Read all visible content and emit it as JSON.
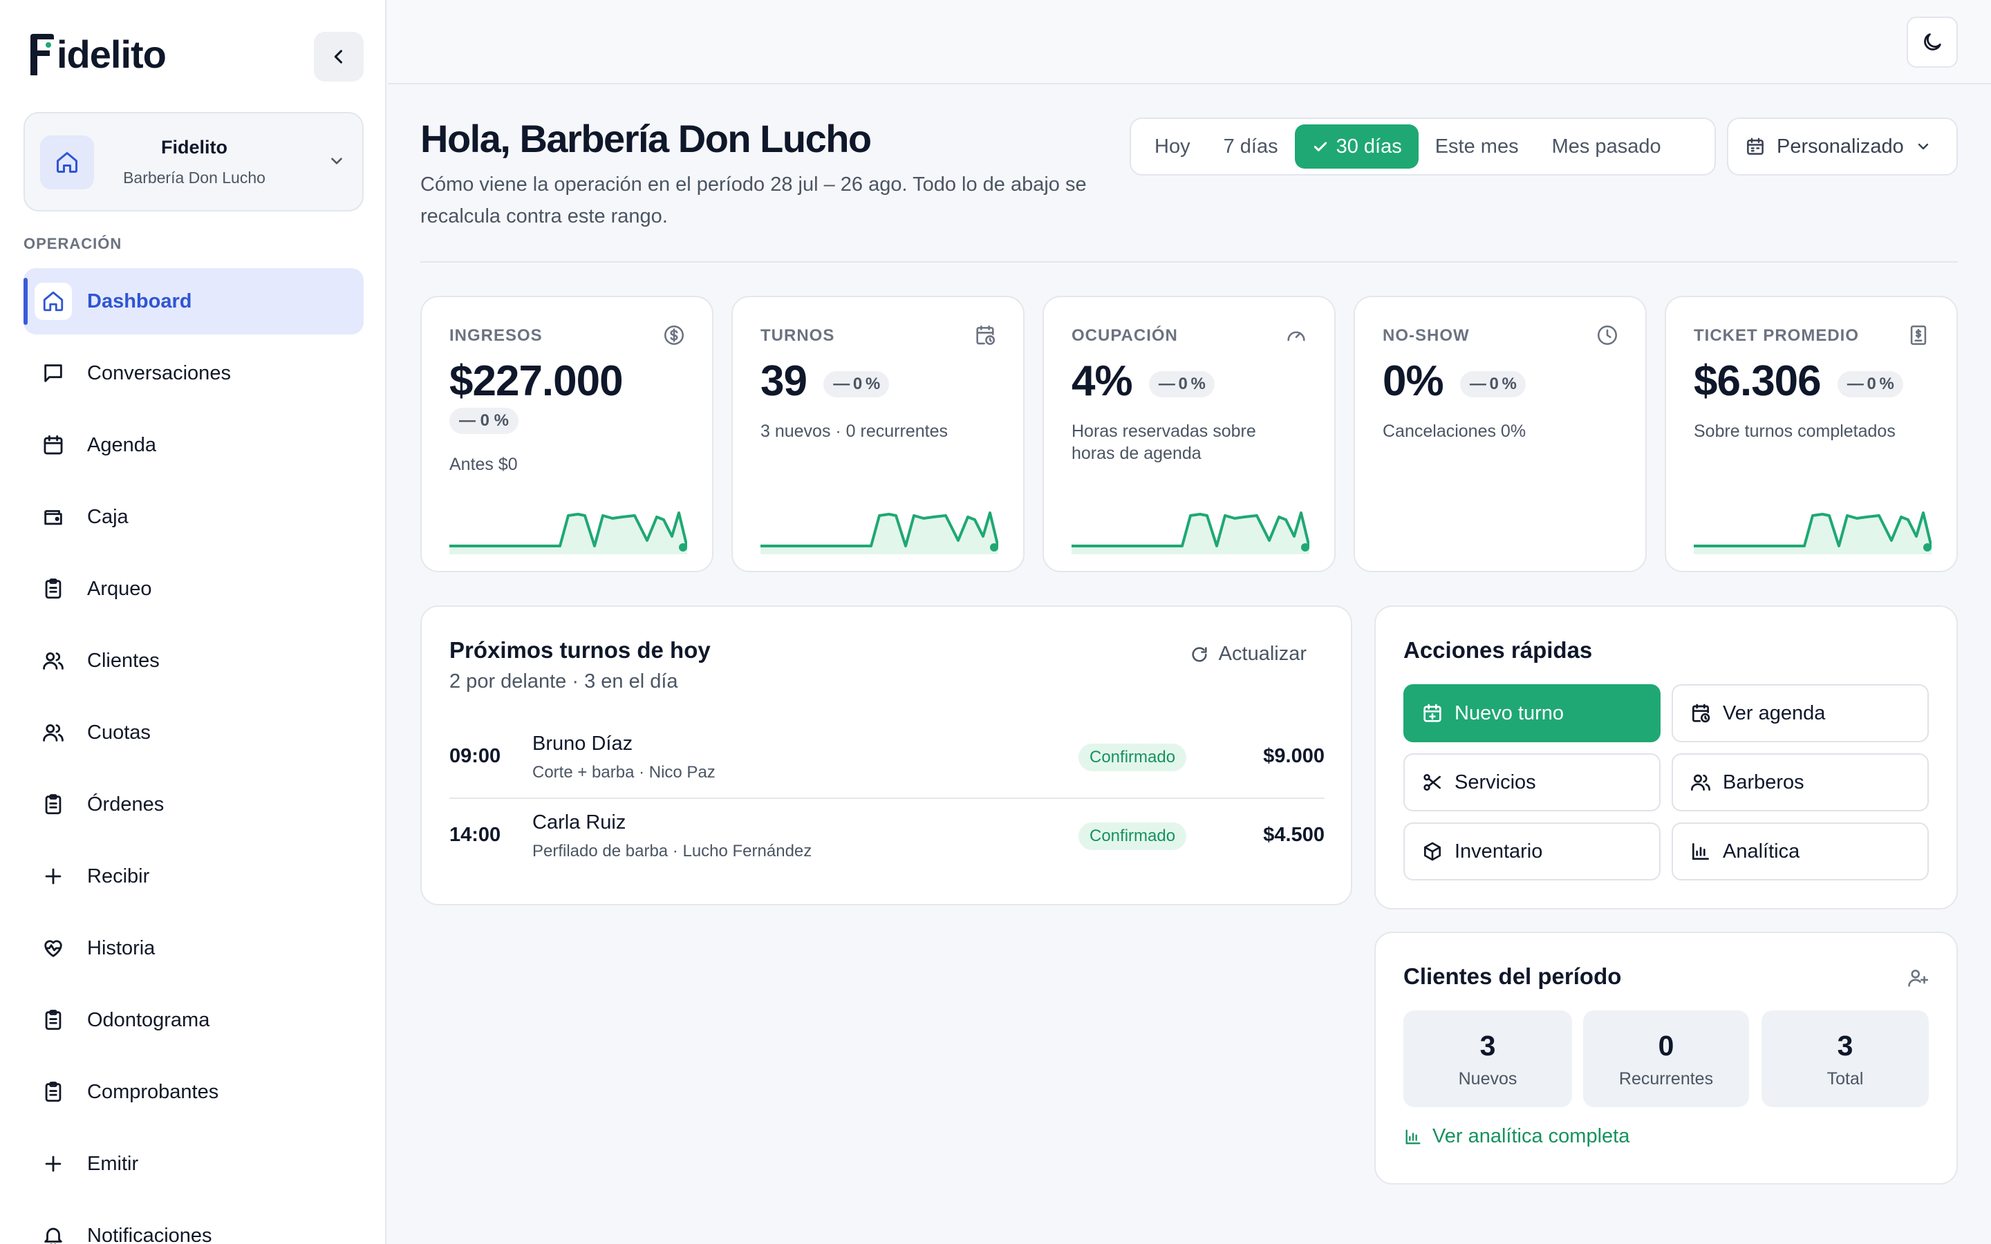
{
  "brand": {
    "name": "idelito",
    "accent": "#1fa874",
    "nav_accent": "#3b5bdb"
  },
  "business": {
    "name": "Fidelito",
    "subtitle": "Barbería Don Lucho"
  },
  "sidebar": {
    "section_label": "OPERACIÓN",
    "items": [
      {
        "label": "Dashboard",
        "icon": "home-icon",
        "active": true
      },
      {
        "label": "Conversaciones",
        "icon": "chat-icon"
      },
      {
        "label": "Agenda",
        "icon": "calendar-icon"
      },
      {
        "label": "Caja",
        "icon": "wallet-icon"
      },
      {
        "label": "Arqueo",
        "icon": "clipboard-icon"
      },
      {
        "label": "Clientes",
        "icon": "users-icon"
      },
      {
        "label": "Cuotas",
        "icon": "users-icon"
      },
      {
        "label": "Órdenes",
        "icon": "clipboard-icon"
      },
      {
        "label": "Recibir",
        "icon": "plus-icon"
      },
      {
        "label": "Historia",
        "icon": "heart-pulse-icon"
      },
      {
        "label": "Odontograma",
        "icon": "clipboard-icon"
      },
      {
        "label": "Comprobantes",
        "icon": "clipboard-icon"
      },
      {
        "label": "Emitir",
        "icon": "plus-icon"
      },
      {
        "label": "Notificaciones",
        "icon": "bell-icon"
      }
    ]
  },
  "header": {
    "greeting": "Hola, Barbería Don Lucho",
    "subtitle": "Cómo viene la operación en el período 28 jul – 26 ago. Todo lo de abajo se recalcula contra este rango.",
    "ranges": [
      "Hoy",
      "7 días",
      "30 días",
      "Este mes",
      "Mes pasado"
    ],
    "selected_range": "30 días",
    "custom_label": "Personalizado"
  },
  "kpis": [
    {
      "label": "INGRESOS",
      "value": "$227.000",
      "badge": "— 0 %",
      "desc": "Antes $0",
      "icon": "dollar-icon",
      "has_spark": true
    },
    {
      "label": "TURNOS",
      "value": "39",
      "badge": "— 0 %",
      "desc": "3 nuevos · 0 recurrentes",
      "icon": "calendar-clock-icon",
      "has_spark": true
    },
    {
      "label": "OCUPACIÓN",
      "value": "4%",
      "badge": "— 0 %",
      "desc": "Horas reservadas sobre horas de agenda",
      "icon": "gauge-icon",
      "has_spark": true
    },
    {
      "label": "NO-SHOW",
      "value": "0%",
      "badge": "— 0 %",
      "desc": "Cancelaciones 0%",
      "icon": "clock-icon",
      "has_spark": false
    },
    {
      "label": "TICKET PROMEDIO",
      "value": "$6.306",
      "badge": "— 0 %",
      "desc": "Sobre turnos completados",
      "icon": "receipt-icon",
      "has_spark": true
    }
  ],
  "appointments": {
    "title": "Próximos turnos de hoy",
    "subtitle": "2 por delante · 3 en el día",
    "refresh_label": "Actualizar",
    "rows": [
      {
        "time": "09:00",
        "client": "Bruno Díaz",
        "service": "Corte + barba · Nico Paz",
        "status": "Confirmado",
        "price": "$9.000"
      },
      {
        "time": "14:00",
        "client": "Carla Ruiz",
        "service": "Perfilado de barba · Lucho Fernández",
        "status": "Confirmado",
        "price": "$4.500"
      }
    ]
  },
  "quick_actions": {
    "title": "Acciones rápidas",
    "buttons": [
      {
        "label": "Nuevo turno",
        "icon": "calendar-plus-icon",
        "primary": true
      },
      {
        "label": "Ver agenda",
        "icon": "calendar-clock-icon"
      },
      {
        "label": "Servicios",
        "icon": "scissors-icon"
      },
      {
        "label": "Barberos",
        "icon": "users-icon"
      },
      {
        "label": "Inventario",
        "icon": "box-icon"
      },
      {
        "label": "Analítica",
        "icon": "bar-chart-icon"
      }
    ]
  },
  "clients": {
    "title": "Clientes del período",
    "stats": [
      {
        "value": "3",
        "label": "Nuevos"
      },
      {
        "value": "0",
        "label": "Recurrentes"
      },
      {
        "value": "3",
        "label": "Total"
      }
    ],
    "link_label": "Ver analítica completa"
  }
}
